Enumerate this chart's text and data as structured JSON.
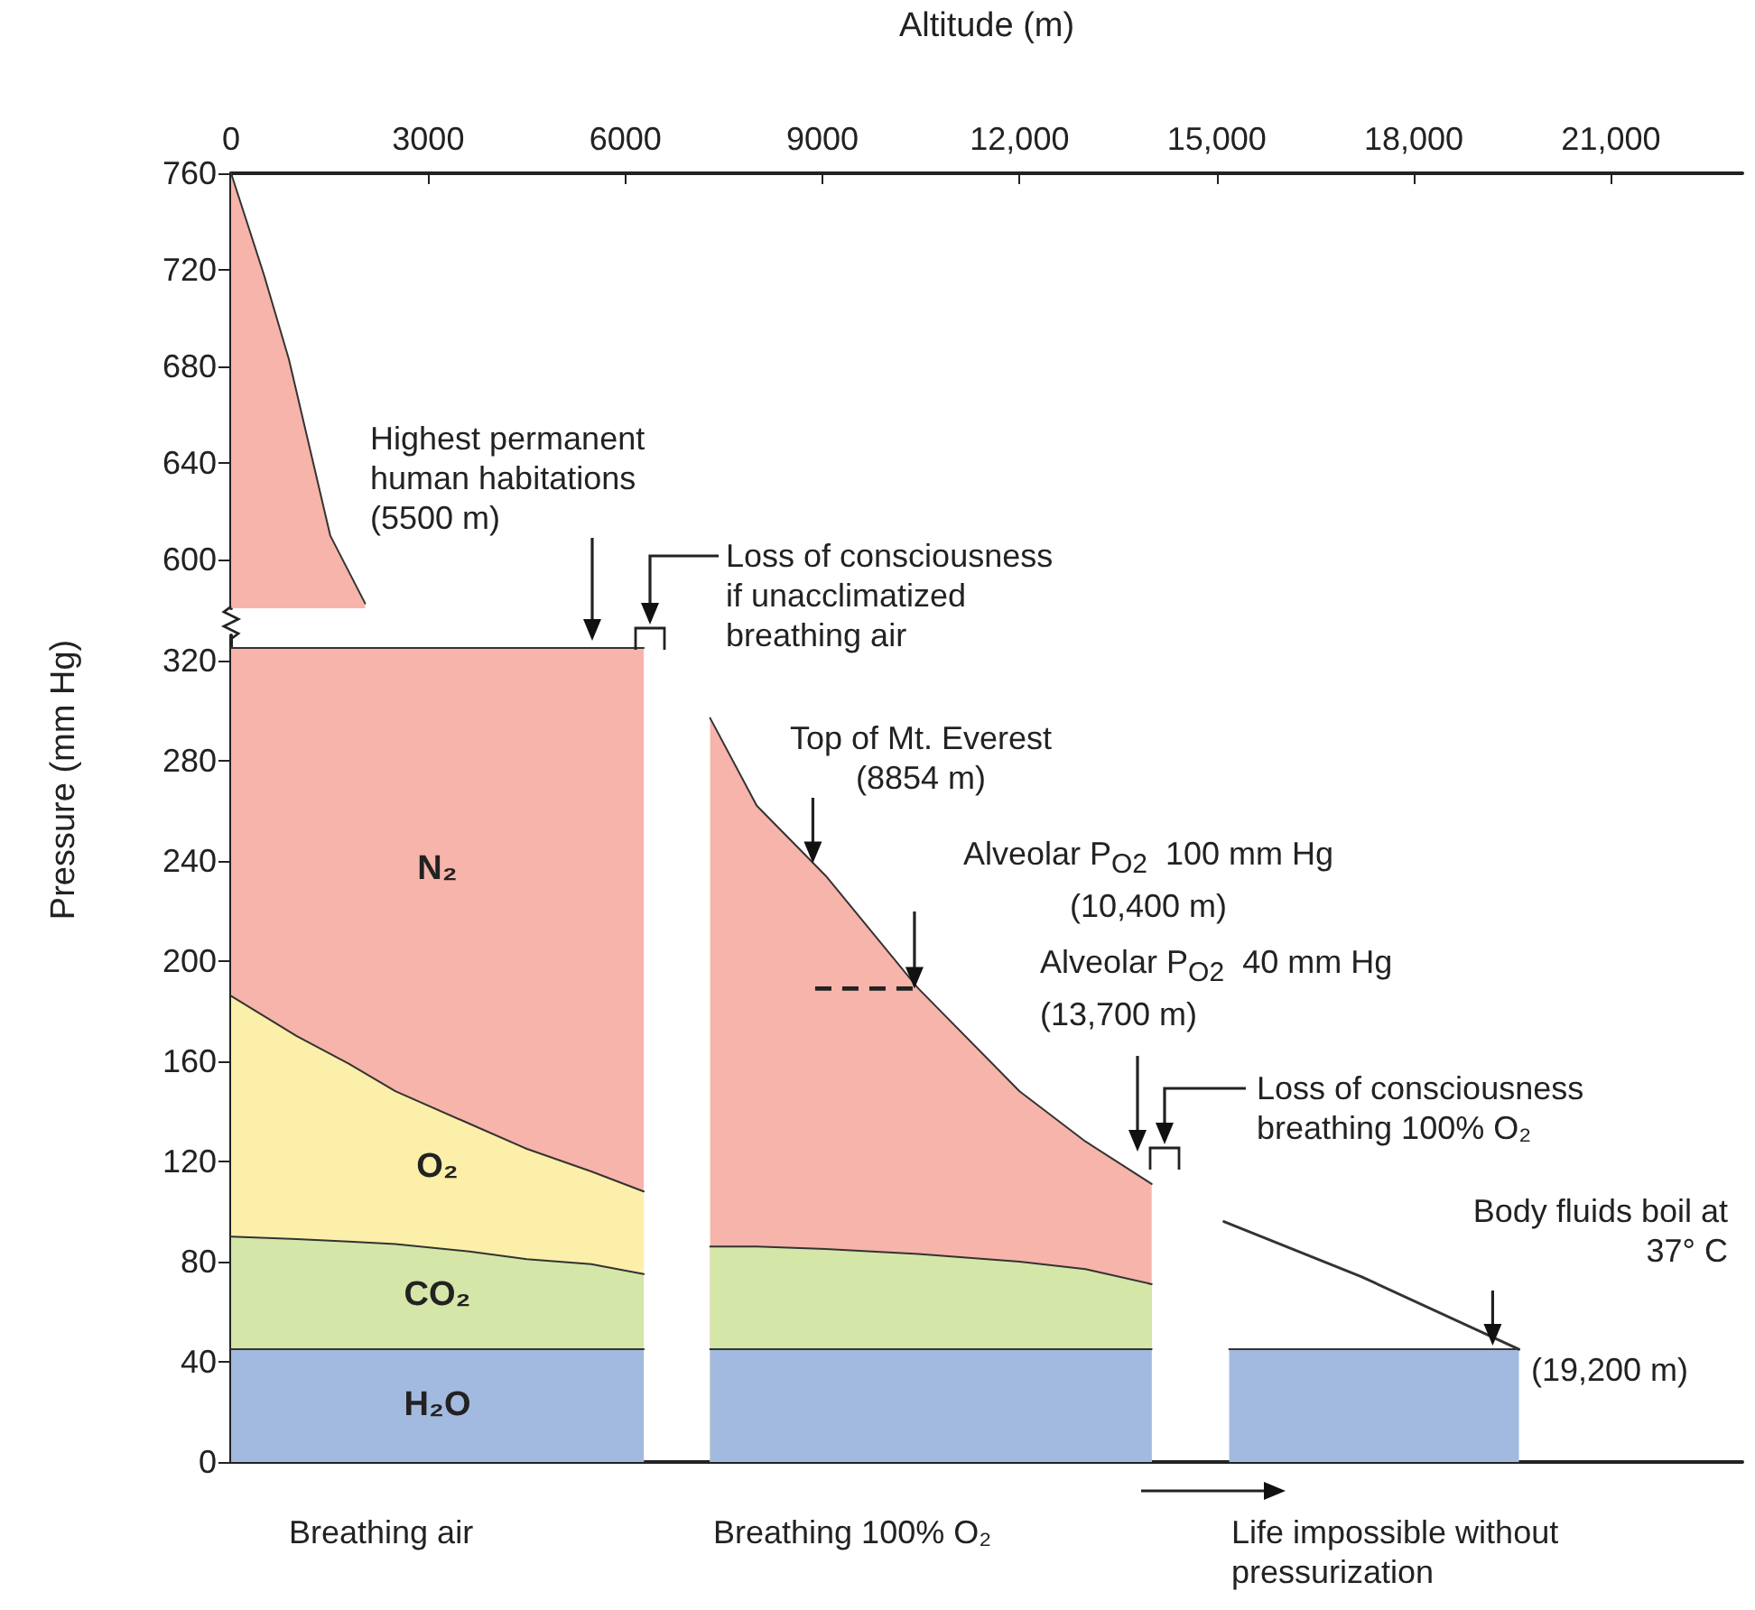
{
  "chart_data": [
    {
      "type": "area",
      "xlabel": "Altitude (m)",
      "x": [
        0,
        500,
        880,
        1510,
        2040
      ],
      "series": [
        {
          "color": "#f7b4aa",
          "values": [
            760,
            718,
            683,
            610,
            582
          ]
        }
      ],
      "xlim": [
        0,
        23000
      ],
      "xticks": [
        0,
        3000,
        6000,
        9000,
        {
          "value": 12000,
          "label": "12,000"
        },
        {
          "value": 15000,
          "label": "15,000"
        },
        {
          "value": 18000,
          "label": "18,000"
        },
        {
          "value": 21000,
          "label": "21,000"
        }
      ],
      "ylim": [
        580,
        760
      ],
      "yticks": [
        600,
        640,
        680,
        720,
        760
      ],
      "grid": false,
      "marker": "none"
    },
    {
      "type": "area",
      "ylabel": "Pressure (mm Hg)",
      "x": [
        0,
        1000,
        1790,
        2500,
        3630,
        4500,
        5480,
        6280,
        6800,
        7290,
        8000,
        9050,
        10460,
        12000,
        13000,
        14010,
        14500,
        15190,
        19600
      ],
      "series": [
        {
          "name": "N₂",
          "color": "#f7b4aa",
          "values": [
            325,
            325,
            325,
            325,
            325,
            325,
            325,
            325,
            null,
            297,
            262,
            234,
            189,
            148,
            128,
            111,
            null,
            null,
            null
          ]
        },
        {
          "name": "O₂",
          "color": "#fcefa9",
          "values": [
            186,
            170,
            159,
            148,
            135,
            125,
            116,
            108,
            null,
            null,
            null,
            null,
            null,
            null,
            null,
            null,
            null,
            null,
            null
          ]
        },
        {
          "name": "CO₂",
          "color": "#d5e6a9",
          "values": [
            90,
            89,
            88,
            87,
            84,
            81,
            79,
            75,
            null,
            86,
            86,
            85,
            83,
            80,
            77,
            71,
            null,
            null,
            null
          ]
        },
        {
          "name": "H₂O",
          "color": "#a2badf",
          "values": [
            45,
            45,
            45,
            45,
            45,
            45,
            45,
            45,
            null,
            45,
            45,
            45,
            45,
            45,
            45,
            45,
            null,
            45,
            45
          ]
        },
        {
          "type": "line",
          "color": "#333333",
          "x": [
            15110,
            17200,
            19600
          ],
          "values": [
            96,
            74,
            45
          ]
        }
      ],
      "xlim": [
        0,
        23000
      ],
      "ylim": [
        0,
        330
      ],
      "yticks": [
        0,
        40,
        80,
        120,
        160,
        200,
        240,
        280,
        320
      ],
      "tick_labels": "y",
      "grid": false,
      "marker": "none",
      "annotations": [
        "Highest permanent\nhuman habitations\n(5500 m)",
        "Loss of consciousness\nif unacclimatized\nbreathing air",
        {
          "text": "Top of Mt. Everest\n(8854 m)",
          "x": 8854,
          "y": 239
        },
        {
          "text": "Alveolar P$_{O2}$  100 mm Hg\n(10,400 m)",
          "x": 10400,
          "y": 189
        },
        "Alveolar P$_{O2}$  40 mm Hg\n(13,700 m)",
        "Loss of consciousness\nbreathing 100% O₂",
        {
          "text": "Body fluids boil at\n37° C",
          "x": 19200,
          "y": 45
        },
        {
          "text": "(19,200 m)",
          "x": 19200,
          "y": 45
        },
        "Breathing air",
        "Breathing 100% O₂",
        "Life impossible without\npressurization"
      ]
    }
  ]
}
